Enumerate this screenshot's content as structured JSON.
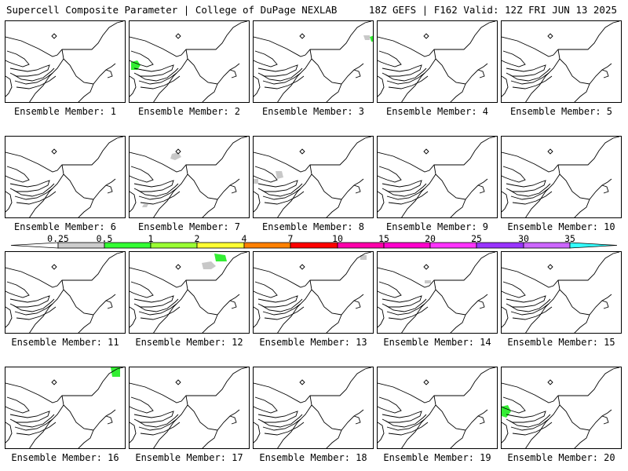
{
  "header": {
    "left_title": "Supercell Composite Parameter | College of DuPage NEXLAB",
    "right_title": "18Z GEFS | F162 Valid: 12Z FRI JUN 13 2025"
  },
  "colorbar": {
    "ticks": [
      "0.25",
      "0.5",
      "1",
      "2",
      "4",
      "7",
      "10",
      "15",
      "20",
      "25",
      "30",
      "35"
    ],
    "colors": [
      "#ffffff",
      "#cccccc",
      "#33ff33",
      "#99ff33",
      "#ffff33",
      "#ff8000",
      "#ff0000",
      "#ff00aa",
      "#ff00cc",
      "#ff33ff",
      "#9933ff",
      "#cc66ff",
      "#33ffff"
    ]
  },
  "member_label_prefix": "Ensemble Member: ",
  "members": [
    {
      "n": "1",
      "blobs": []
    },
    {
      "n": "2",
      "blobs": [
        {
          "color": "green",
          "region": "michigan-south"
        }
      ]
    },
    {
      "n": "3",
      "blobs": [
        {
          "color": "gray",
          "region": "quebec-east"
        },
        {
          "color": "green",
          "region": "quebec-edge"
        }
      ]
    },
    {
      "n": "4",
      "blobs": []
    },
    {
      "n": "5",
      "blobs": []
    },
    {
      "n": "6",
      "blobs": []
    },
    {
      "n": "7",
      "blobs": [
        {
          "color": "gray",
          "region": "ontario-north"
        },
        {
          "color": "gray",
          "region": "kentucky"
        }
      ]
    },
    {
      "n": "8",
      "blobs": [
        {
          "color": "gray",
          "region": "ohio"
        },
        {
          "color": "gray",
          "region": "indiana"
        }
      ]
    },
    {
      "n": "9",
      "blobs": []
    },
    {
      "n": "10",
      "blobs": []
    },
    {
      "n": "11",
      "blobs": []
    },
    {
      "n": "12",
      "blobs": [
        {
          "color": "gray",
          "region": "maine-west"
        },
        {
          "color": "green",
          "region": "maine-north"
        }
      ]
    },
    {
      "n": "13",
      "blobs": [
        {
          "color": "gray",
          "region": "maine-east"
        }
      ]
    },
    {
      "n": "14",
      "blobs": [
        {
          "color": "gray",
          "region": "new-york-north"
        }
      ]
    },
    {
      "n": "15",
      "blobs": []
    },
    {
      "n": "16",
      "blobs": [
        {
          "color": "green",
          "region": "maine-top"
        }
      ]
    },
    {
      "n": "17",
      "blobs": []
    },
    {
      "n": "18",
      "blobs": []
    },
    {
      "n": "19",
      "blobs": []
    },
    {
      "n": "20",
      "blobs": [
        {
          "color": "green",
          "region": "michigan-west"
        }
      ]
    }
  ]
}
